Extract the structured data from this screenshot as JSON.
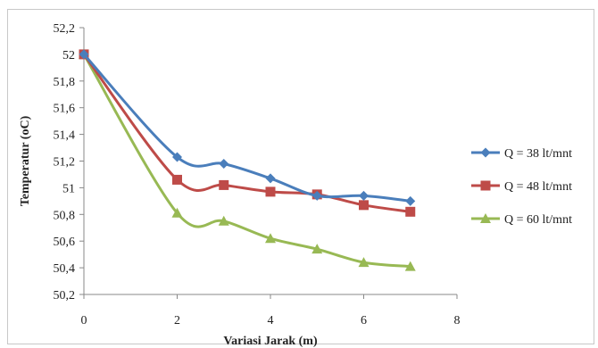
{
  "chart_data": {
    "type": "line",
    "xlabel": "Variasi Jarak (m)",
    "ylabel": "Temperatur (oC)",
    "xlim": [
      0,
      8
    ],
    "ylim": [
      50.2,
      52.2
    ],
    "x_ticks": [
      "0",
      "2",
      "4",
      "6",
      "8"
    ],
    "y_ticks": [
      "50,2",
      "50,4",
      "50,6",
      "50,8",
      "51",
      "51,2",
      "51,4",
      "51,6",
      "51,8",
      "52",
      "52,2"
    ],
    "grid": false,
    "legend_position": "right",
    "series": [
      {
        "name": "Q = 38 lt/mnt",
        "color": "#4a7ebb",
        "marker": "diamond",
        "x": [
          0,
          2,
          3,
          4,
          5,
          6,
          7
        ],
        "y": [
          52.0,
          51.23,
          51.18,
          51.07,
          50.94,
          50.94,
          50.9
        ]
      },
      {
        "name": "Q = 48 lt/mnt",
        "color": "#be4b48",
        "marker": "square",
        "x": [
          0,
          2,
          3,
          4,
          5,
          6,
          7
        ],
        "y": [
          52.0,
          51.06,
          51.02,
          50.97,
          50.95,
          50.87,
          50.82
        ]
      },
      {
        "name": "Q = 60 lt/mnt",
        "color": "#98b954",
        "marker": "triangle",
        "x": [
          0,
          2,
          3,
          4,
          5,
          6,
          7
        ],
        "y": [
          52.0,
          50.81,
          50.75,
          50.62,
          50.54,
          50.44,
          50.41
        ]
      }
    ]
  }
}
